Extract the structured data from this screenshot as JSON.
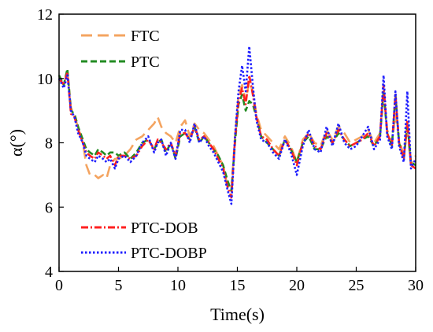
{
  "chart_data": {
    "type": "line",
    "title": "",
    "xlabel": "Time(s)",
    "ylabel": "α(°)",
    "xlim": [
      0,
      30
    ],
    "ylim": [
      4,
      12
    ],
    "xticks": [
      0,
      5,
      10,
      15,
      20,
      25,
      30
    ],
    "yticks": [
      4,
      6,
      8,
      10,
      12
    ],
    "grid": false,
    "legend": [
      {
        "name": "FTC",
        "color": "#f4a460",
        "dash": "long-dash",
        "placement": "top-left"
      },
      {
        "name": "PTC",
        "color": "#228b22",
        "dash": "dash",
        "placement": "top-left"
      },
      {
        "name": "PTC-DOB",
        "color": "#ff2020",
        "dash": "dash-dot",
        "placement": "bottom-left"
      },
      {
        "name": "PTC-DOBP",
        "color": "#1f1fff",
        "dash": "dot",
        "placement": "bottom-left"
      }
    ],
    "series": [
      {
        "name": "FTC",
        "color": "#f4a460",
        "x": [
          0,
          0.4,
          0.7,
          1.0,
          1.3,
          1.6,
          2.0,
          2.3,
          2.6,
          3.0,
          3.3,
          3.7,
          4.0,
          4.3,
          4.7,
          5.0,
          5.5,
          6.0,
          6.5,
          7.0,
          7.5,
          8.0,
          8.3,
          8.6,
          9.0,
          9.4,
          9.8,
          10.2,
          10.6,
          11.0,
          11.4,
          11.8,
          12.2,
          12.6,
          13.0,
          13.4,
          13.8,
          14.2,
          14.5,
          14.8,
          15.1,
          15.4,
          15.7,
          16.0,
          16.3,
          16.6,
          17.0,
          17.5,
          18.0,
          18.5,
          19.0,
          19.5,
          20.0,
          20.5,
          21.0,
          21.5,
          22.0,
          22.5,
          23.0,
          23.5,
          24.0,
          24.5,
          25.0,
          25.5,
          26.0,
          26.5,
          27.0,
          27.3,
          27.6,
          28.0,
          28.3,
          28.6,
          29.0,
          29.3,
          29.6,
          30.0
        ],
        "y": [
          10.0,
          9.8,
          10.2,
          9.1,
          8.8,
          8.5,
          8.0,
          7.3,
          7.0,
          7.0,
          6.9,
          7.0,
          6.9,
          7.3,
          7.5,
          7.5,
          7.6,
          7.8,
          8.1,
          8.2,
          8.4,
          8.6,
          8.8,
          8.5,
          8.3,
          8.2,
          8.0,
          8.5,
          8.7,
          8.2,
          8.6,
          8.4,
          8.3,
          8.1,
          7.9,
          7.6,
          7.3,
          6.6,
          6.5,
          8.2,
          9.5,
          9.8,
          9.3,
          9.9,
          9.6,
          8.9,
          8.4,
          8.2,
          8.0,
          7.8,
          8.2,
          7.9,
          7.4,
          8.1,
          8.3,
          8.0,
          7.9,
          8.4,
          8.1,
          8.5,
          8.3,
          8.0,
          8.1,
          8.2,
          8.4,
          8.0,
          8.3,
          9.6,
          8.4,
          8.0,
          8.9,
          8.1,
          7.6,
          8.4,
          7.3,
          7.6
        ]
      },
      {
        "name": "PTC",
        "color": "#228b22",
        "x": [
          0,
          0.4,
          0.7,
          1.0,
          1.3,
          1.6,
          2.0,
          2.3,
          2.6,
          3.0,
          3.3,
          3.7,
          4.0,
          4.3,
          4.7,
          5.0,
          5.5,
          6.0,
          6.5,
          7.0,
          7.5,
          8.0,
          8.3,
          8.6,
          9.0,
          9.4,
          9.8,
          10.2,
          10.6,
          11.0,
          11.4,
          11.8,
          12.2,
          12.6,
          13.0,
          13.4,
          13.8,
          14.2,
          14.5,
          14.8,
          15.1,
          15.4,
          15.7,
          16.0,
          16.3,
          16.6,
          17.0,
          17.5,
          18.0,
          18.5,
          19.0,
          19.5,
          20.0,
          20.5,
          21.0,
          21.5,
          22.0,
          22.5,
          23.0,
          23.5,
          24.0,
          24.5,
          25.0,
          25.5,
          26.0,
          26.5,
          27.0,
          27.3,
          27.6,
          28.0,
          28.3,
          28.6,
          29.0,
          29.3,
          29.6,
          30.0
        ],
        "y": [
          10.1,
          9.8,
          10.3,
          9.0,
          8.9,
          8.5,
          8.1,
          7.8,
          7.7,
          7.6,
          7.8,
          7.7,
          7.6,
          7.7,
          7.7,
          7.6,
          7.7,
          7.5,
          7.7,
          8.0,
          8.1,
          7.8,
          8.0,
          8.1,
          7.7,
          8.0,
          7.5,
          8.2,
          8.3,
          8.1,
          8.5,
          8.0,
          8.2,
          8.0,
          7.8,
          7.6,
          7.3,
          6.8,
          6.5,
          8.0,
          9.2,
          9.5,
          9.0,
          9.3,
          9.2,
          8.8,
          8.2,
          8.0,
          7.8,
          7.6,
          8.1,
          7.8,
          7.4,
          8.0,
          8.2,
          7.8,
          7.8,
          8.2,
          8.0,
          8.3,
          8.1,
          7.9,
          8.0,
          8.1,
          8.2,
          7.9,
          8.2,
          9.6,
          8.3,
          7.9,
          9.5,
          8.0,
          7.5,
          8.6,
          7.4,
          7.3
        ]
      },
      {
        "name": "PTC-DOB",
        "color": "#ff2020",
        "x": [
          0,
          0.4,
          0.7,
          1.0,
          1.3,
          1.6,
          2.0,
          2.3,
          2.6,
          3.0,
          3.3,
          3.7,
          4.0,
          4.3,
          4.7,
          5.0,
          5.5,
          6.0,
          6.5,
          7.0,
          7.5,
          8.0,
          8.3,
          8.6,
          9.0,
          9.4,
          9.8,
          10.2,
          10.6,
          11.0,
          11.4,
          11.8,
          12.2,
          12.6,
          13.0,
          13.4,
          13.8,
          14.2,
          14.5,
          14.8,
          15.1,
          15.4,
          15.7,
          16.0,
          16.3,
          16.6,
          17.0,
          17.5,
          18.0,
          18.5,
          19.0,
          19.5,
          20.0,
          20.5,
          21.0,
          21.5,
          22.0,
          22.5,
          23.0,
          23.5,
          24.0,
          24.5,
          25.0,
          25.5,
          26.0,
          26.5,
          27.0,
          27.3,
          27.6,
          28.0,
          28.3,
          28.6,
          29.0,
          29.3,
          29.6,
          30.0
        ],
        "y": [
          10.0,
          9.8,
          10.2,
          8.9,
          8.8,
          8.4,
          8.0,
          7.7,
          7.6,
          7.5,
          7.7,
          7.6,
          7.5,
          7.6,
          7.3,
          7.6,
          7.6,
          7.5,
          7.6,
          7.9,
          8.1,
          7.8,
          8.1,
          8.0,
          7.8,
          8.0,
          7.6,
          8.3,
          8.3,
          8.1,
          8.5,
          8.1,
          8.2,
          8.0,
          7.8,
          7.5,
          7.2,
          6.6,
          6.3,
          8.1,
          9.3,
          9.7,
          9.2,
          10.1,
          9.5,
          8.8,
          8.2,
          8.1,
          7.8,
          7.6,
          8.1,
          7.8,
          7.3,
          8.0,
          8.3,
          7.9,
          7.8,
          8.3,
          8.0,
          8.4,
          8.1,
          7.9,
          8.0,
          8.1,
          8.3,
          7.9,
          8.2,
          9.8,
          8.3,
          7.9,
          9.5,
          8.0,
          7.5,
          8.7,
          7.3,
          7.2
        ]
      },
      {
        "name": "PTC-DOBP",
        "color": "#1f1fff",
        "x": [
          0,
          0.4,
          0.7,
          1.0,
          1.3,
          1.6,
          2.0,
          2.3,
          2.6,
          3.0,
          3.3,
          3.7,
          4.0,
          4.3,
          4.7,
          5.0,
          5.5,
          6.0,
          6.5,
          7.0,
          7.5,
          8.0,
          8.3,
          8.6,
          9.0,
          9.4,
          9.8,
          10.2,
          10.6,
          11.0,
          11.4,
          11.8,
          12.2,
          12.6,
          13.0,
          13.4,
          13.8,
          14.2,
          14.5,
          14.8,
          15.1,
          15.4,
          15.7,
          16.0,
          16.3,
          16.6,
          17.0,
          17.5,
          18.0,
          18.5,
          19.0,
          19.5,
          20.0,
          20.5,
          21.0,
          21.5,
          22.0,
          22.5,
          23.0,
          23.5,
          24.0,
          24.5,
          25.0,
          25.5,
          26.0,
          26.5,
          27.0,
          27.3,
          27.6,
          28.0,
          28.3,
          28.6,
          29.0,
          29.3,
          29.6,
          30.0
        ],
        "y": [
          10.0,
          9.7,
          10.1,
          9.0,
          8.8,
          8.3,
          8.0,
          7.6,
          7.5,
          7.4,
          7.6,
          7.5,
          7.4,
          7.5,
          7.2,
          7.5,
          7.6,
          7.4,
          7.6,
          8.0,
          8.2,
          7.7,
          8.0,
          8.1,
          7.6,
          8.0,
          7.5,
          8.4,
          8.4,
          8.0,
          8.6,
          8.0,
          8.2,
          7.9,
          7.7,
          7.4,
          7.1,
          6.5,
          6.1,
          8.2,
          9.6,
          10.4,
          9.6,
          11.0,
          9.8,
          8.7,
          8.1,
          8.0,
          7.7,
          7.5,
          8.1,
          7.7,
          7.0,
          7.9,
          8.4,
          7.8,
          7.7,
          8.5,
          7.9,
          8.6,
          8.0,
          7.8,
          7.9,
          8.2,
          8.5,
          7.8,
          8.1,
          10.1,
          8.2,
          7.8,
          9.6,
          7.9,
          7.4,
          9.6,
          7.2,
          7.5
        ]
      }
    ]
  }
}
